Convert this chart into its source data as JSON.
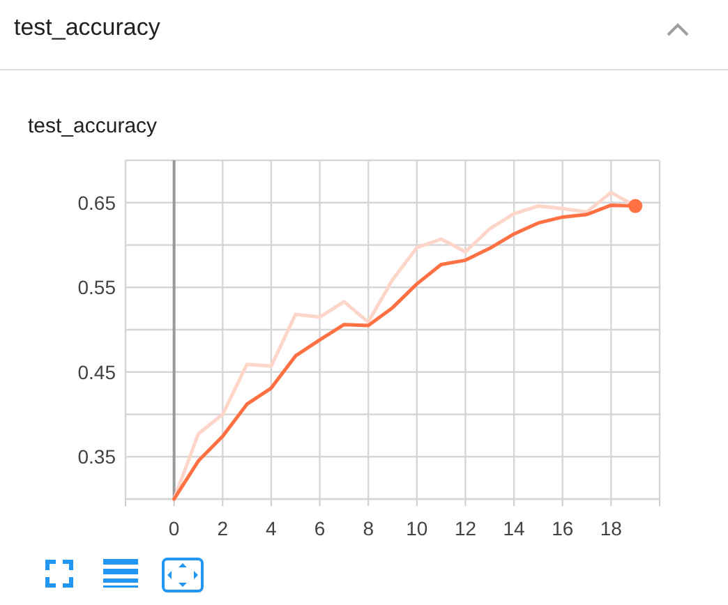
{
  "chart_data": {
    "type": "line",
    "title": "test_accuracy",
    "subtitle": "test_accuracy",
    "x": [
      0,
      1,
      2,
      3,
      4,
      5,
      6,
      7,
      8,
      9,
      10,
      11,
      12,
      13,
      14,
      15,
      16,
      17,
      18,
      19
    ],
    "series": [
      {
        "color": "#fdd5c9",
        "values": [
          0.3,
          0.377,
          0.4,
          0.459,
          0.457,
          0.518,
          0.515,
          0.533,
          0.509,
          0.559,
          0.597,
          0.607,
          0.592,
          0.619,
          0.637,
          0.646,
          0.643,
          0.639,
          0.662,
          0.646
        ]
      },
      {
        "color": "#ff7043",
        "values": [
          0.3,
          0.345,
          0.374,
          0.412,
          0.431,
          0.469,
          0.488,
          0.506,
          0.505,
          0.526,
          0.554,
          0.577,
          0.582,
          0.596,
          0.613,
          0.626,
          0.633,
          0.636,
          0.647,
          0.646
        ]
      }
    ],
    "xlim": [
      -2,
      20
    ],
    "xticks": [
      {
        "value": -2,
        "label": null
      },
      0,
      2,
      4,
      6,
      8,
      10,
      12,
      14,
      16,
      18,
      {
        "value": 20,
        "label": null
      }
    ],
    "ylim": [
      0.3,
      0.7
    ],
    "yticks": [
      {
        "value": 0.3,
        "label": null
      },
      0.35,
      {
        "value": 0.4,
        "label": null
      },
      0.45,
      {
        "value": 0.5,
        "label": null
      },
      0.55,
      {
        "value": 0.6,
        "label": null
      },
      0.65,
      {
        "value": 0.7,
        "label": null
      }
    ],
    "grid": true,
    "ref_lines": [
      {
        "axis": "x",
        "value": 0,
        "color": "#999999"
      }
    ]
  }
}
